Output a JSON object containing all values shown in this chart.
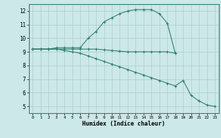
{
  "line1_x": [
    0,
    1,
    2,
    3,
    4,
    5,
    6,
    7,
    8,
    9,
    10,
    11,
    12,
    13,
    14,
    15,
    16,
    17,
    18
  ],
  "line1_y": [
    9.2,
    9.2,
    9.2,
    9.3,
    9.3,
    9.3,
    9.3,
    10.0,
    10.5,
    11.2,
    11.5,
    11.8,
    12.0,
    12.1,
    12.1,
    12.1,
    11.8,
    11.1,
    8.9
  ],
  "line2_x": [
    0,
    1,
    2,
    3,
    4,
    5,
    6,
    7,
    8,
    9,
    10,
    11,
    12,
    13,
    14,
    15,
    16,
    17,
    18
  ],
  "line2_y": [
    9.2,
    9.2,
    9.2,
    9.2,
    9.2,
    9.2,
    9.2,
    9.2,
    9.2,
    9.15,
    9.1,
    9.05,
    9.0,
    9.0,
    9.0,
    9.0,
    9.0,
    9.0,
    8.9
  ],
  "line3_x": [
    0,
    1,
    2,
    3,
    4,
    5,
    6,
    7,
    8,
    9,
    10,
    11,
    12,
    13,
    14,
    15,
    16,
    17,
    18,
    19,
    20,
    21,
    22,
    23
  ],
  "line3_y": [
    9.2,
    9.2,
    9.2,
    9.2,
    9.1,
    9.0,
    8.9,
    8.7,
    8.5,
    8.3,
    8.1,
    7.9,
    7.7,
    7.5,
    7.3,
    7.1,
    6.9,
    6.7,
    6.5,
    6.9,
    5.8,
    5.4,
    5.1,
    5.0
  ],
  "line_color": "#2e7d6e",
  "bg_color": "#cce8e8",
  "grid_color": "#aacccc",
  "xlim": [
    -0.5,
    23.5
  ],
  "ylim": [
    4.5,
    12.5
  ],
  "yticks": [
    5,
    6,
    7,
    8,
    9,
    10,
    11,
    12
  ],
  "xticks": [
    0,
    1,
    2,
    3,
    4,
    5,
    6,
    7,
    8,
    9,
    10,
    11,
    12,
    13,
    14,
    15,
    16,
    17,
    18,
    19,
    20,
    21,
    22,
    23
  ],
  "xlabel": "Humidex (Indice chaleur)",
  "marker": "+"
}
